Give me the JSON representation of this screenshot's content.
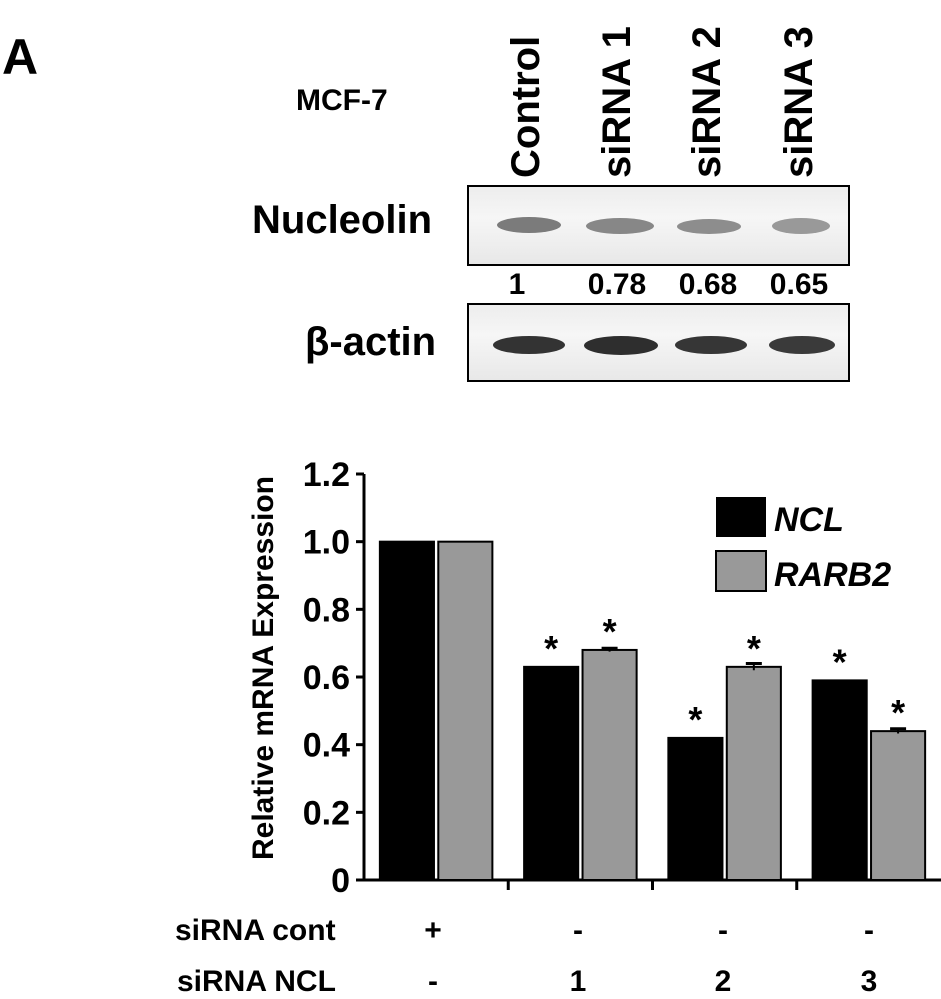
{
  "panel_label": "A",
  "cell_line": "MCF-7",
  "lanes": [
    "Control",
    "siRNA 1",
    "siRNA 2",
    "siRNA 3"
  ],
  "blots": {
    "nucleolin_label": "Nucleolin",
    "actin_label": "β-actin",
    "quantification": [
      "1",
      "0.78",
      "0.68",
      "0.65"
    ]
  },
  "chart_data": {
    "type": "bar",
    "ylabel": "Relative mRNA Expression",
    "ylim": [
      0,
      1.2
    ],
    "yticks": [
      "0",
      "0.2",
      "0.4",
      "0.6",
      "0.8",
      "1.0",
      "1.2"
    ],
    "group_count": 4,
    "series": [
      {
        "name": "NCL",
        "values": [
          1.0,
          0.63,
          0.42,
          0.59
        ],
        "color": "#000000",
        "significant": [
          false,
          true,
          true,
          true
        ]
      },
      {
        "name": "RARB2",
        "values": [
          1.0,
          0.68,
          0.63,
          0.44
        ],
        "color": "#999999",
        "significant": [
          false,
          true,
          true,
          true
        ]
      }
    ],
    "error_bars": [
      [
        0,
        0
      ],
      [
        0,
        0.005
      ],
      [
        0,
        0.01
      ],
      [
        0,
        0.007
      ]
    ],
    "significance_marker": "*",
    "legend_position": "top-right"
  },
  "conditions": {
    "rows": [
      {
        "label": "siRNA cont",
        "values": [
          "+",
          "-",
          "-",
          "-"
        ]
      },
      {
        "label": "siRNA NCL",
        "values": [
          "-",
          "1",
          "2",
          "3"
        ]
      }
    ]
  }
}
